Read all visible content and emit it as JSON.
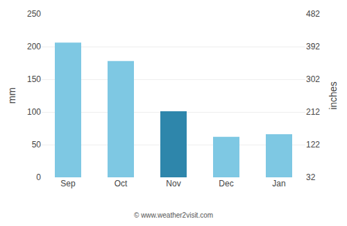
{
  "chart_data": {
    "type": "bar",
    "categories": [
      "Sep",
      "Oct",
      "Nov",
      "Dec",
      "Jan"
    ],
    "values": [
      206,
      178,
      101,
      62,
      66
    ],
    "colors": [
      "#7EC8E3",
      "#7EC8E3",
      "#2E86AB",
      "#7EC8E3",
      "#7EC8E3"
    ],
    "ylabel": "mm",
    "y2label": "inches",
    "ylim": [
      0,
      250
    ],
    "yticks": [
      0,
      50,
      100,
      150,
      200,
      250
    ],
    "y2lim": [
      32,
      482
    ],
    "y2ticks": [
      32,
      122,
      212,
      302,
      392,
      482
    ],
    "grid": true,
    "annotations": [
      "© www.weather2visit.com"
    ]
  }
}
